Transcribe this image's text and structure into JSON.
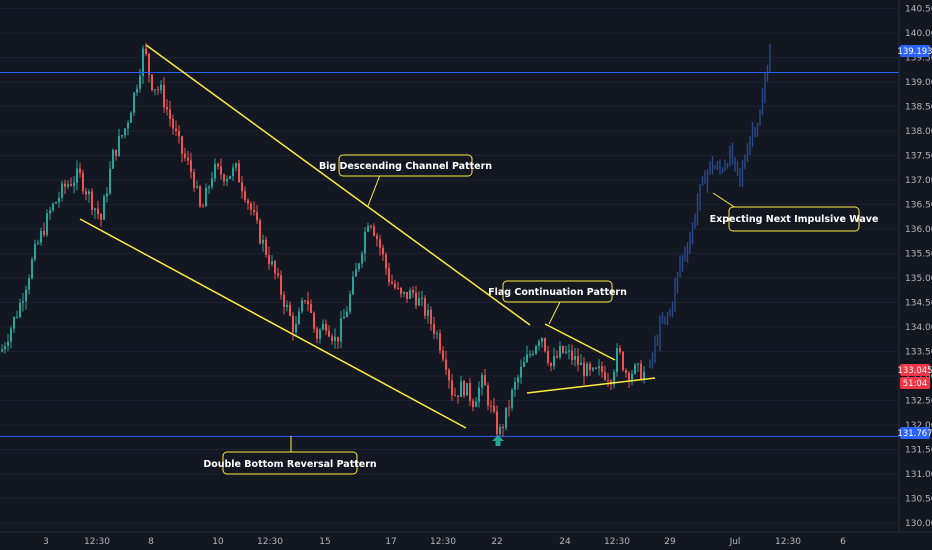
{
  "chart_data": {
    "type": "candlestick",
    "y_ticks": [
      "140.500",
      "140.000",
      "139.500",
      "139.000",
      "138.500",
      "138.000",
      "137.500",
      "137.000",
      "136.500",
      "136.000",
      "135.500",
      "135.000",
      "134.500",
      "134.000",
      "133.500",
      "133.000",
      "132.500",
      "132.000",
      "131.500",
      "131.000",
      "130.500",
      "130.000"
    ],
    "ylim": [
      129.75,
      140.8
    ],
    "x_ticks": [
      "3",
      "12:30",
      "8",
      "10",
      "12:30",
      "15",
      "17",
      "12:30",
      "22",
      "24",
      "12:30",
      "29",
      "Jul",
      "12:30",
      "6"
    ],
    "horizontal_lines": [
      {
        "price": 139.193,
        "label": "139.193",
        "color": "#2962ff"
      },
      {
        "price": 131.767,
        "label": "131.767",
        "color": "#2962ff"
      }
    ],
    "current_price": {
      "label": "133.045",
      "countdown": "51:04",
      "color": "#f23645"
    },
    "annotations": [
      "Big Descending Channel Pattern",
      "Flag Continuation Pattern",
      "Expecting Next Impulsive Wave",
      "Double Bottom Reversal Pattern"
    ],
    "trendline_color": "#ffeb3b",
    "up_color": "#26a69a",
    "down_color": "#ef5350",
    "projection_color": "#2a4a8a",
    "marker_color": "#26a69a",
    "path_points": [
      [
        0,
        133.5
      ],
      [
        18,
        134.4
      ],
      [
        35,
        135.6
      ],
      [
        50,
        136.4
      ],
      [
        65,
        136.9
      ],
      [
        78,
        137.1
      ],
      [
        90,
        136.6
      ],
      [
        100,
        136.2
      ],
      [
        112,
        137.5
      ],
      [
        125,
        138.1
      ],
      [
        135,
        138.9
      ],
      [
        143,
        139.7
      ],
      [
        150,
        139.0
      ],
      [
        160,
        138.8
      ],
      [
        170,
        138.2
      ],
      [
        180,
        137.6
      ],
      [
        192,
        137.1
      ],
      [
        200,
        136.3
      ],
      [
        212,
        137.2
      ],
      [
        225,
        137.1
      ],
      [
        235,
        137.2
      ],
      [
        245,
        136.7
      ],
      [
        258,
        135.9
      ],
      [
        270,
        135.3
      ],
      [
        282,
        134.6
      ],
      [
        294,
        133.9
      ],
      [
        305,
        134.7
      ],
      [
        315,
        133.8
      ],
      [
        325,
        134.1
      ],
      [
        335,
        133.7
      ],
      [
        345,
        134.3
      ],
      [
        356,
        135.2
      ],
      [
        368,
        136.3
      ],
      [
        378,
        135.7
      ],
      [
        388,
        135.0
      ],
      [
        400,
        134.6
      ],
      [
        412,
        134.7
      ],
      [
        422,
        134.4
      ],
      [
        435,
        133.9
      ],
      [
        445,
        133.3
      ],
      [
        452,
        132.6
      ],
      [
        462,
        132.8
      ],
      [
        472,
        132.5
      ],
      [
        482,
        132.9
      ],
      [
        490,
        132.3
      ],
      [
        498,
        131.8
      ],
      [
        505,
        132.2
      ],
      [
        512,
        132.7
      ],
      [
        520,
        133.1
      ],
      [
        530,
        133.5
      ],
      [
        540,
        133.9
      ],
      [
        550,
        133.2
      ],
      [
        560,
        133.5
      ],
      [
        570,
        133.4
      ],
      [
        580,
        133.2
      ],
      [
        590,
        133.0
      ],
      [
        600,
        133.1
      ],
      [
        610,
        133.0
      ],
      [
        617,
        133.5
      ],
      [
        625,
        133.1
      ],
      [
        635,
        133.1
      ],
      [
        645,
        133.05
      ]
    ],
    "projection_points": [
      [
        650,
        133.2
      ],
      [
        660,
        134.0
      ],
      [
        670,
        134.3
      ],
      [
        680,
        135.3
      ],
      [
        690,
        135.8
      ],
      [
        700,
        136.8
      ],
      [
        710,
        137.3
      ],
      [
        720,
        137.2
      ],
      [
        730,
        137.5
      ],
      [
        740,
        137.0
      ],
      [
        750,
        137.9
      ],
      [
        760,
        138.3
      ],
      [
        770,
        139.7
      ]
    ]
  }
}
